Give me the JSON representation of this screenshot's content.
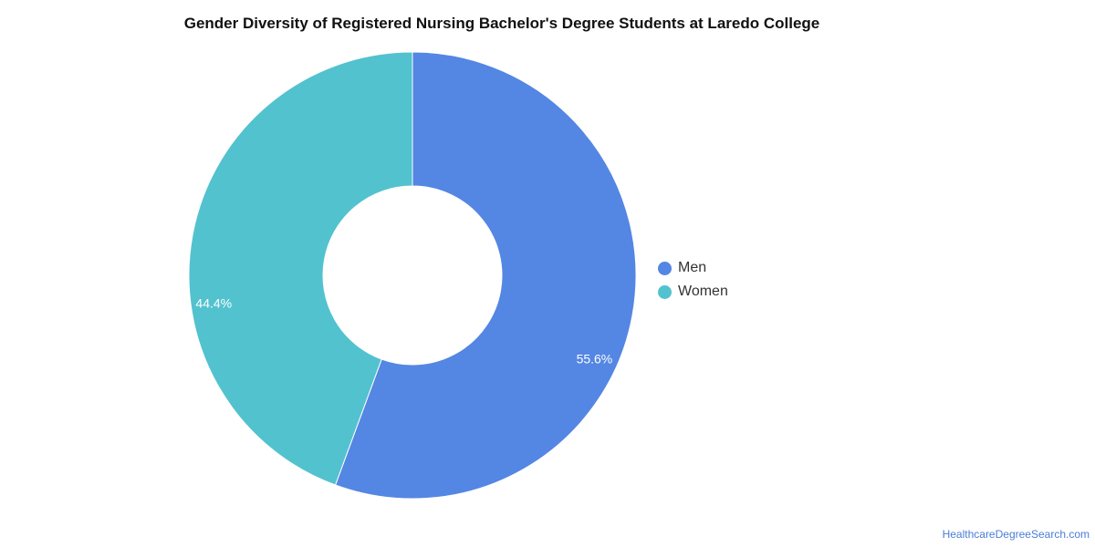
{
  "chart_data": {
    "type": "pie",
    "title": "Gender Diversity of Registered Nursing Bachelor's Degree Students at Laredo College",
    "donut": true,
    "legend_position": "right",
    "slices": [
      {
        "name": "Men",
        "value": 55.6,
        "label": "55.6%",
        "color": "#5486e3"
      },
      {
        "name": "Women",
        "value": 44.4,
        "label": "44.4%",
        "color": "#52c2cf"
      }
    ]
  },
  "credit": "HealthcareDegreeSearch.com"
}
